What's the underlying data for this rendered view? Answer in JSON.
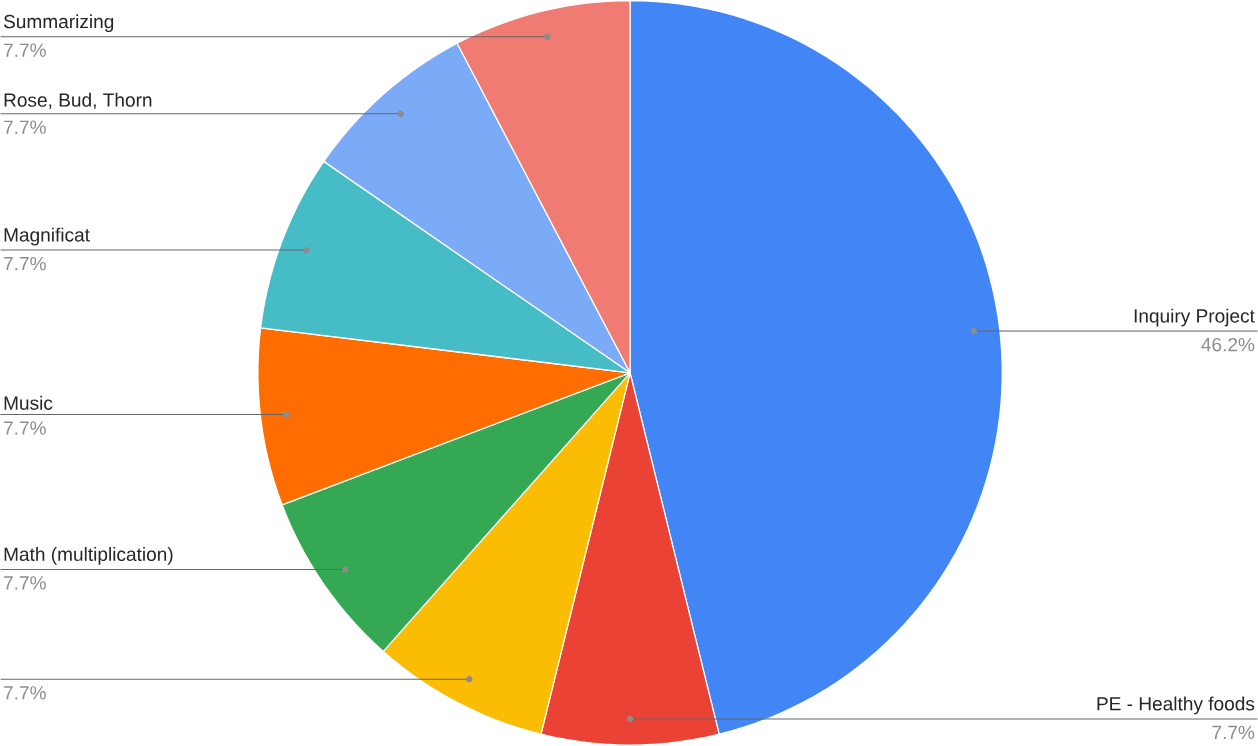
{
  "chart_data": {
    "type": "pie",
    "categories": [
      "Inquiry Project",
      "PE - Healthy foods",
      null,
      "Math (multiplication)",
      "Music",
      "Magnificat",
      "Rose, Bud, Thorn",
      "Summarizing"
    ],
    "values": [
      46.2,
      7.7,
      7.7,
      7.7,
      7.7,
      7.7,
      7.7,
      7.7
    ],
    "value_labels": [
      "46.2%",
      "7.7%",
      "7.7%",
      "7.7%",
      "7.7%",
      "7.7%",
      "7.7%",
      "7.7%"
    ],
    "colors": [
      "#4285f4",
      "#ea4335",
      "#fbbc04",
      "#34a853",
      "#ff6d01",
      "#46bdc6",
      "#7baaf7",
      "#f07b72"
    ]
  }
}
